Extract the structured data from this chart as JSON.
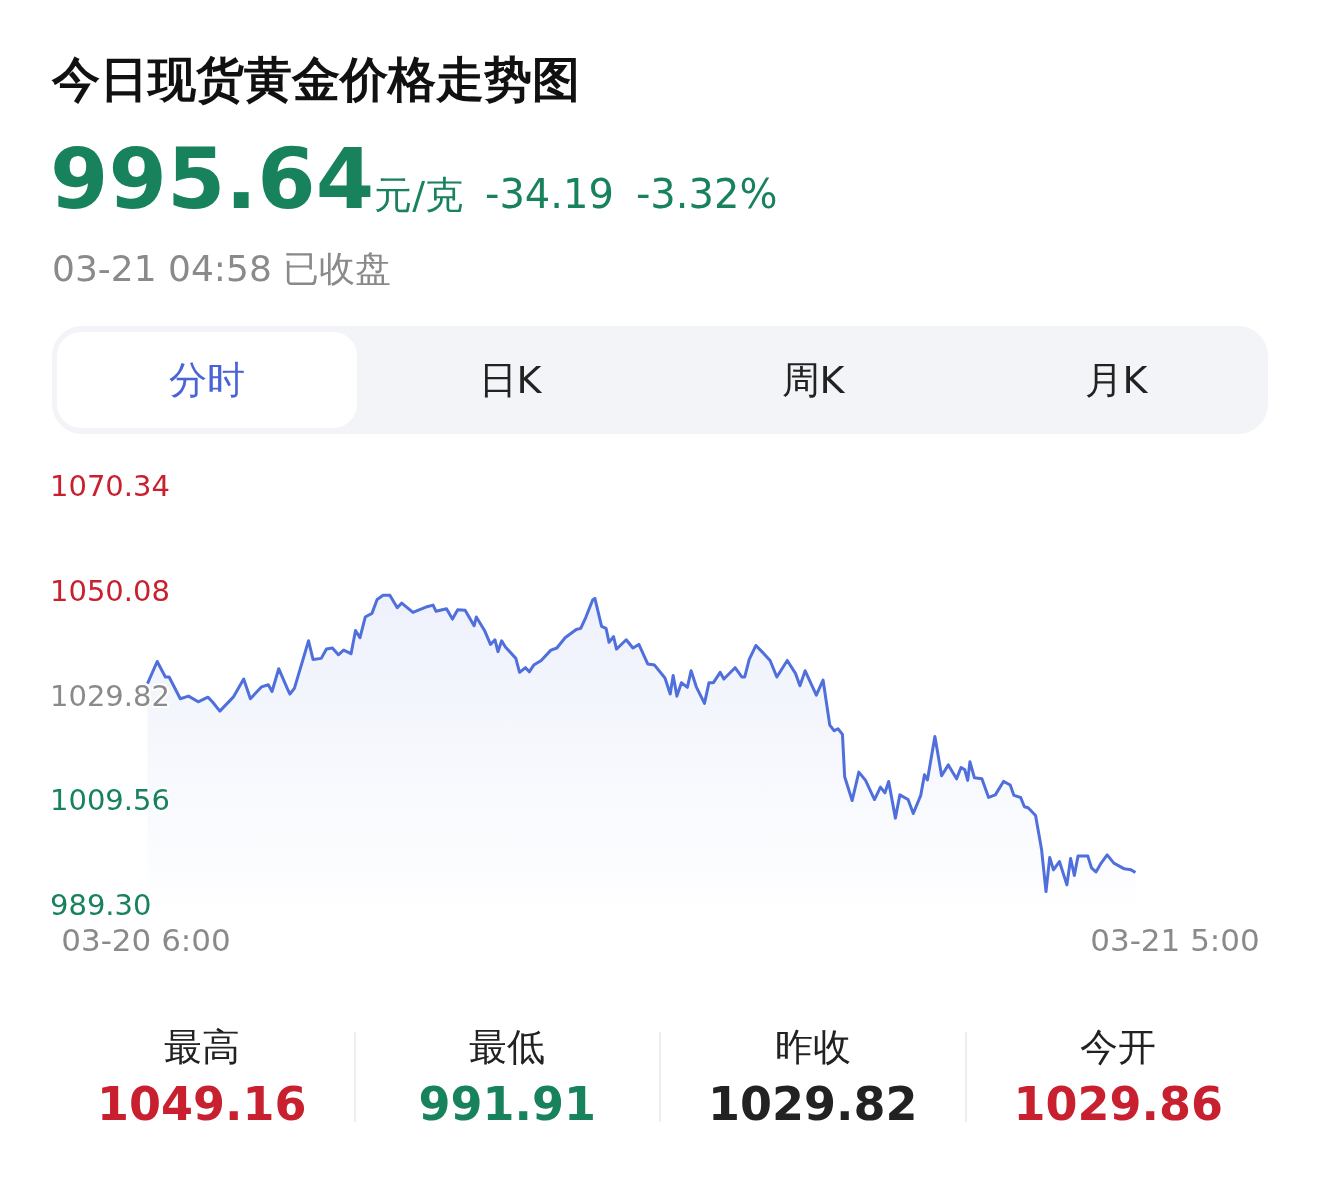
{
  "chart_data": {
    "type": "area",
    "title": "今日现货黄金价格走势图",
    "subtitle": "995.64元/克 -34.19 -3.32%",
    "annotations": [
      "03-21 04:58 已收盘",
      "分时",
      "日K",
      "周K",
      "月K",
      "最高",
      "1049.16",
      "最低",
      "991.91",
      "昨收",
      "1029.82",
      "今开",
      "1029.86"
    ],
    "x": [
      "--03-20T06:02",
      "--03-20T06:15",
      "--03-20T06:26",
      "--03-20T06:31",
      "--03-20T06:46",
      "--03-20T06:57",
      "--03-20T07:10",
      "--03-20T07:23",
      "--03-20T07:29",
      "--03-20T07:39",
      "--03-20T07:57",
      "--03-20T08:11",
      "--03-20T08:20",
      "--03-20T08:35",
      "--03-20T08:44",
      "--03-20T08:49",
      "--03-20T08:58",
      "--03-20T09:10",
      "--03-20T09:13",
      "--03-20T09:19",
      "--03-20T09:38",
      "--03-20T09:44",
      "--03-20T09:55",
      "--03-20T10:02",
      "--03-20T10:10",
      "--03-20T10:18",
      "--03-20T10:25",
      "--03-20T10:35",
      "--03-20T10:41",
      "--03-20T10:47",
      "--03-20T10:54",
      "--03-20T11:03",
      "--03-20T11:10",
      "--03-20T11:18",
      "--03-20T11:27",
      "--03-20T11:37",
      "--03-20T11:43",
      "--03-20T11:58",
      "--03-20T12:17",
      "--03-20T12:25",
      "--03-20T12:29",
      "--03-20T12:43",
      "--03-20T12:51",
      "--03-20T12:58",
      "--03-20T13:08",
      "--03-20T13:20",
      "--03-20T13:23",
      "--03-20T13:34",
      "--03-20T13:42",
      "--03-20T13:48",
      "--03-20T13:52",
      "--03-20T13:57",
      "--03-20T14:02",
      "--03-20T14:16",
      "--03-20T14:21",
      "--03-20T14:29",
      "--03-20T14:34",
      "--03-20T14:40",
      "--03-20T14:50",
      "--03-20T15:03",
      "--03-20T15:11",
      "--03-20T15:22",
      "--03-20T15:37",
      "--03-20T15:43",
      "--03-20T15:50",
      "--03-20T15:59",
      "--03-20T16:02",
      "--03-20T16:11",
      "--03-20T16:17",
      "--03-20T16:21",
      "--03-20T16:27",
      "--03-20T16:31",
      "--03-20T16:36",
      "--03-20T16:44",
      "--03-20T16:53",
      "--03-20T17:01",
      "--03-20T17:13",
      "--03-20T17:22",
      "--03-20T17:36",
      "--03-20T17:43",
      "--03-20T17:47",
      "--03-20T17:52",
      "--03-20T17:58",
      "--03-20T18:06",
      "--03-20T18:11",
      "--03-20T18:18",
      "--03-20T18:29",
      "--03-20T18:35",
      "--03-20T18:41",
      "--03-20T18:50",
      "--03-20T18:55",
      "--03-20T19:10",
      "--03-20T19:19",
      "--03-20T19:23",
      "--03-20T19:29",
      "--03-20T19:38",
      "--03-20T19:46",
      "--03-20T19:57",
      "--03-20T20:06",
      "--03-20T20:20",
      "--03-20T20:31",
      "--03-20T20:37",
      "--03-20T20:44",
      "--03-20T20:59",
      "--03-20T21:08",
      "--03-20T21:17",
      "--03-20T21:23",
      "--03-20T21:28",
      "--03-20T21:34",
      "--03-20T21:37",
      "--03-20T21:47",
      "--03-20T21:56",
      "--03-20T22:05",
      "--03-20T22:17",
      "--03-20T22:25",
      "--03-20T22:31",
      "--03-20T22:36",
      "--03-20T22:45",
      "--03-20T22:51",
      "--03-20T23:02",
      "--03-20T23:09",
      "--03-20T23:19",
      "--03-20T23:24",
      "--03-20T23:28",
      "--03-20T23:38",
      "--03-20T23:47",
      "--03-20T23:56",
      "--03-21T00:07",
      "--03-21T00:13",
      "--03-21T00:18",
      "--03-21T00:22",
      "--03-21T00:25",
      "--03-21T00:31",
      "--03-21T00:41",
      "--03-21T00:50",
      "--03-21T00:59",
      "--03-21T01:10",
      "--03-21T01:19",
      "--03-21T01:24",
      "--03-21T01:33",
      "--03-21T01:38",
      "--03-21T01:43",
      "--03-21T01:53",
      "--03-21T02:01",
      "--03-21T02:07",
      "--03-21T02:12",
      "--03-21T02:17",
      "--03-21T02:25",
      "--03-21T02:35",
      "--03-21T02:40",
      "--03-21T02:45",
      "--03-21T02:50",
      "--03-21T03:03",
      "--03-21T03:08",
      "--03-21T03:14",
      "--03-21T03:20",
      "--03-21T03:29",
      "--03-21T03:38",
      "--03-21T03:52",
      "--03-21T04:01",
      "--03-21T04:07"
    ],
    "series": [
      {
        "color": "#4f6fdc",
        "values": [
          1032.1,
          1036.4,
          1033.4,
          1033.4,
          1029.2,
          1029.7,
          1028.6,
          1029.5,
          1028.6,
          1026.8,
          1029.5,
          1033.0,
          1029.2,
          1031.5,
          1031.9,
          1030.6,
          1035.0,
          1031.0,
          1030.1,
          1031.2,
          1040.4,
          1036.8,
          1037.0,
          1038.8,
          1039.0,
          1037.7,
          1038.6,
          1037.9,
          1042.4,
          1041.0,
          1045.0,
          1045.7,
          1048.4,
          1049.2,
          1049.2,
          1046.8,
          1047.7,
          1045.9,
          1047.0,
          1047.3,
          1046.1,
          1046.6,
          1044.6,
          1046.4,
          1046.3,
          1043.3,
          1045.0,
          1042.4,
          1039.7,
          1040.6,
          1038.3,
          1040.4,
          1039.2,
          1037.0,
          1034.3,
          1035.2,
          1034.4,
          1035.7,
          1036.6,
          1038.6,
          1039.0,
          1041.0,
          1042.6,
          1042.8,
          1045.0,
          1048.3,
          1048.6,
          1043.2,
          1042.8,
          1040.1,
          1041.2,
          1038.8,
          1039.5,
          1040.6,
          1039.0,
          1039.7,
          1035.9,
          1035.7,
          1033.2,
          1030.1,
          1033.7,
          1029.7,
          1032.3,
          1031.4,
          1034.6,
          1031.5,
          1028.3,
          1032.3,
          1032.3,
          1034.3,
          1033.0,
          1035.2,
          1033.4,
          1033.4,
          1036.8,
          1039.5,
          1038.3,
          1036.6,
          1033.4,
          1036.6,
          1034.1,
          1031.7,
          1034.6,
          1029.9,
          1032.8,
          1024.1,
          1023.0,
          1023.4,
          1022.3,
          1014.1,
          1009.5,
          1015.0,
          1013.4,
          1009.7,
          1012.1,
          1011.0,
          1013.2,
          1006.1,
          1010.6,
          1009.7,
          1007.0,
          1010.5,
          1014.5,
          1013.5,
          1021.9,
          1014.3,
          1016.4,
          1013.7,
          1015.9,
          1015.5,
          1013.4,
          1017.0,
          1013.9,
          1013.7,
          1010.1,
          1010.6,
          1013.2,
          1012.5,
          1010.5,
          1010.1,
          1008.3,
          1008.1,
          1006.6,
          1000.1,
          991.9,
          998.5,
          996.1,
          997.7,
          993.2,
          998.3,
          995.0,
          998.8,
          998.8,
          996.5,
          995.7,
          997.2,
          999.0,
          997.4,
          996.3,
          996.1,
          995.6
        ]
      }
    ],
    "xlim": [
      "--03-20T06:00",
      "--03-21T05:00"
    ],
    "xticks": [
      {
        "value": "--03-20T06:00",
        "label": "03-20 6:00"
      },
      {
        "value": "--03-21T05:00",
        "label": "03-21 5:00"
      }
    ],
    "ylim": [
      989.3,
      1070.34
    ],
    "yticks": [
      {
        "value": 989.3,
        "label": "989.30"
      },
      {
        "value": 1009.56,
        "label": "1009.56"
      },
      {
        "value": 1029.82,
        "label": "1029.82"
      },
      {
        "value": 1050.08,
        "label": "1050.08"
      },
      {
        "value": 1070.34,
        "label": "1070.34"
      }
    ],
    "legend": false
  }
}
